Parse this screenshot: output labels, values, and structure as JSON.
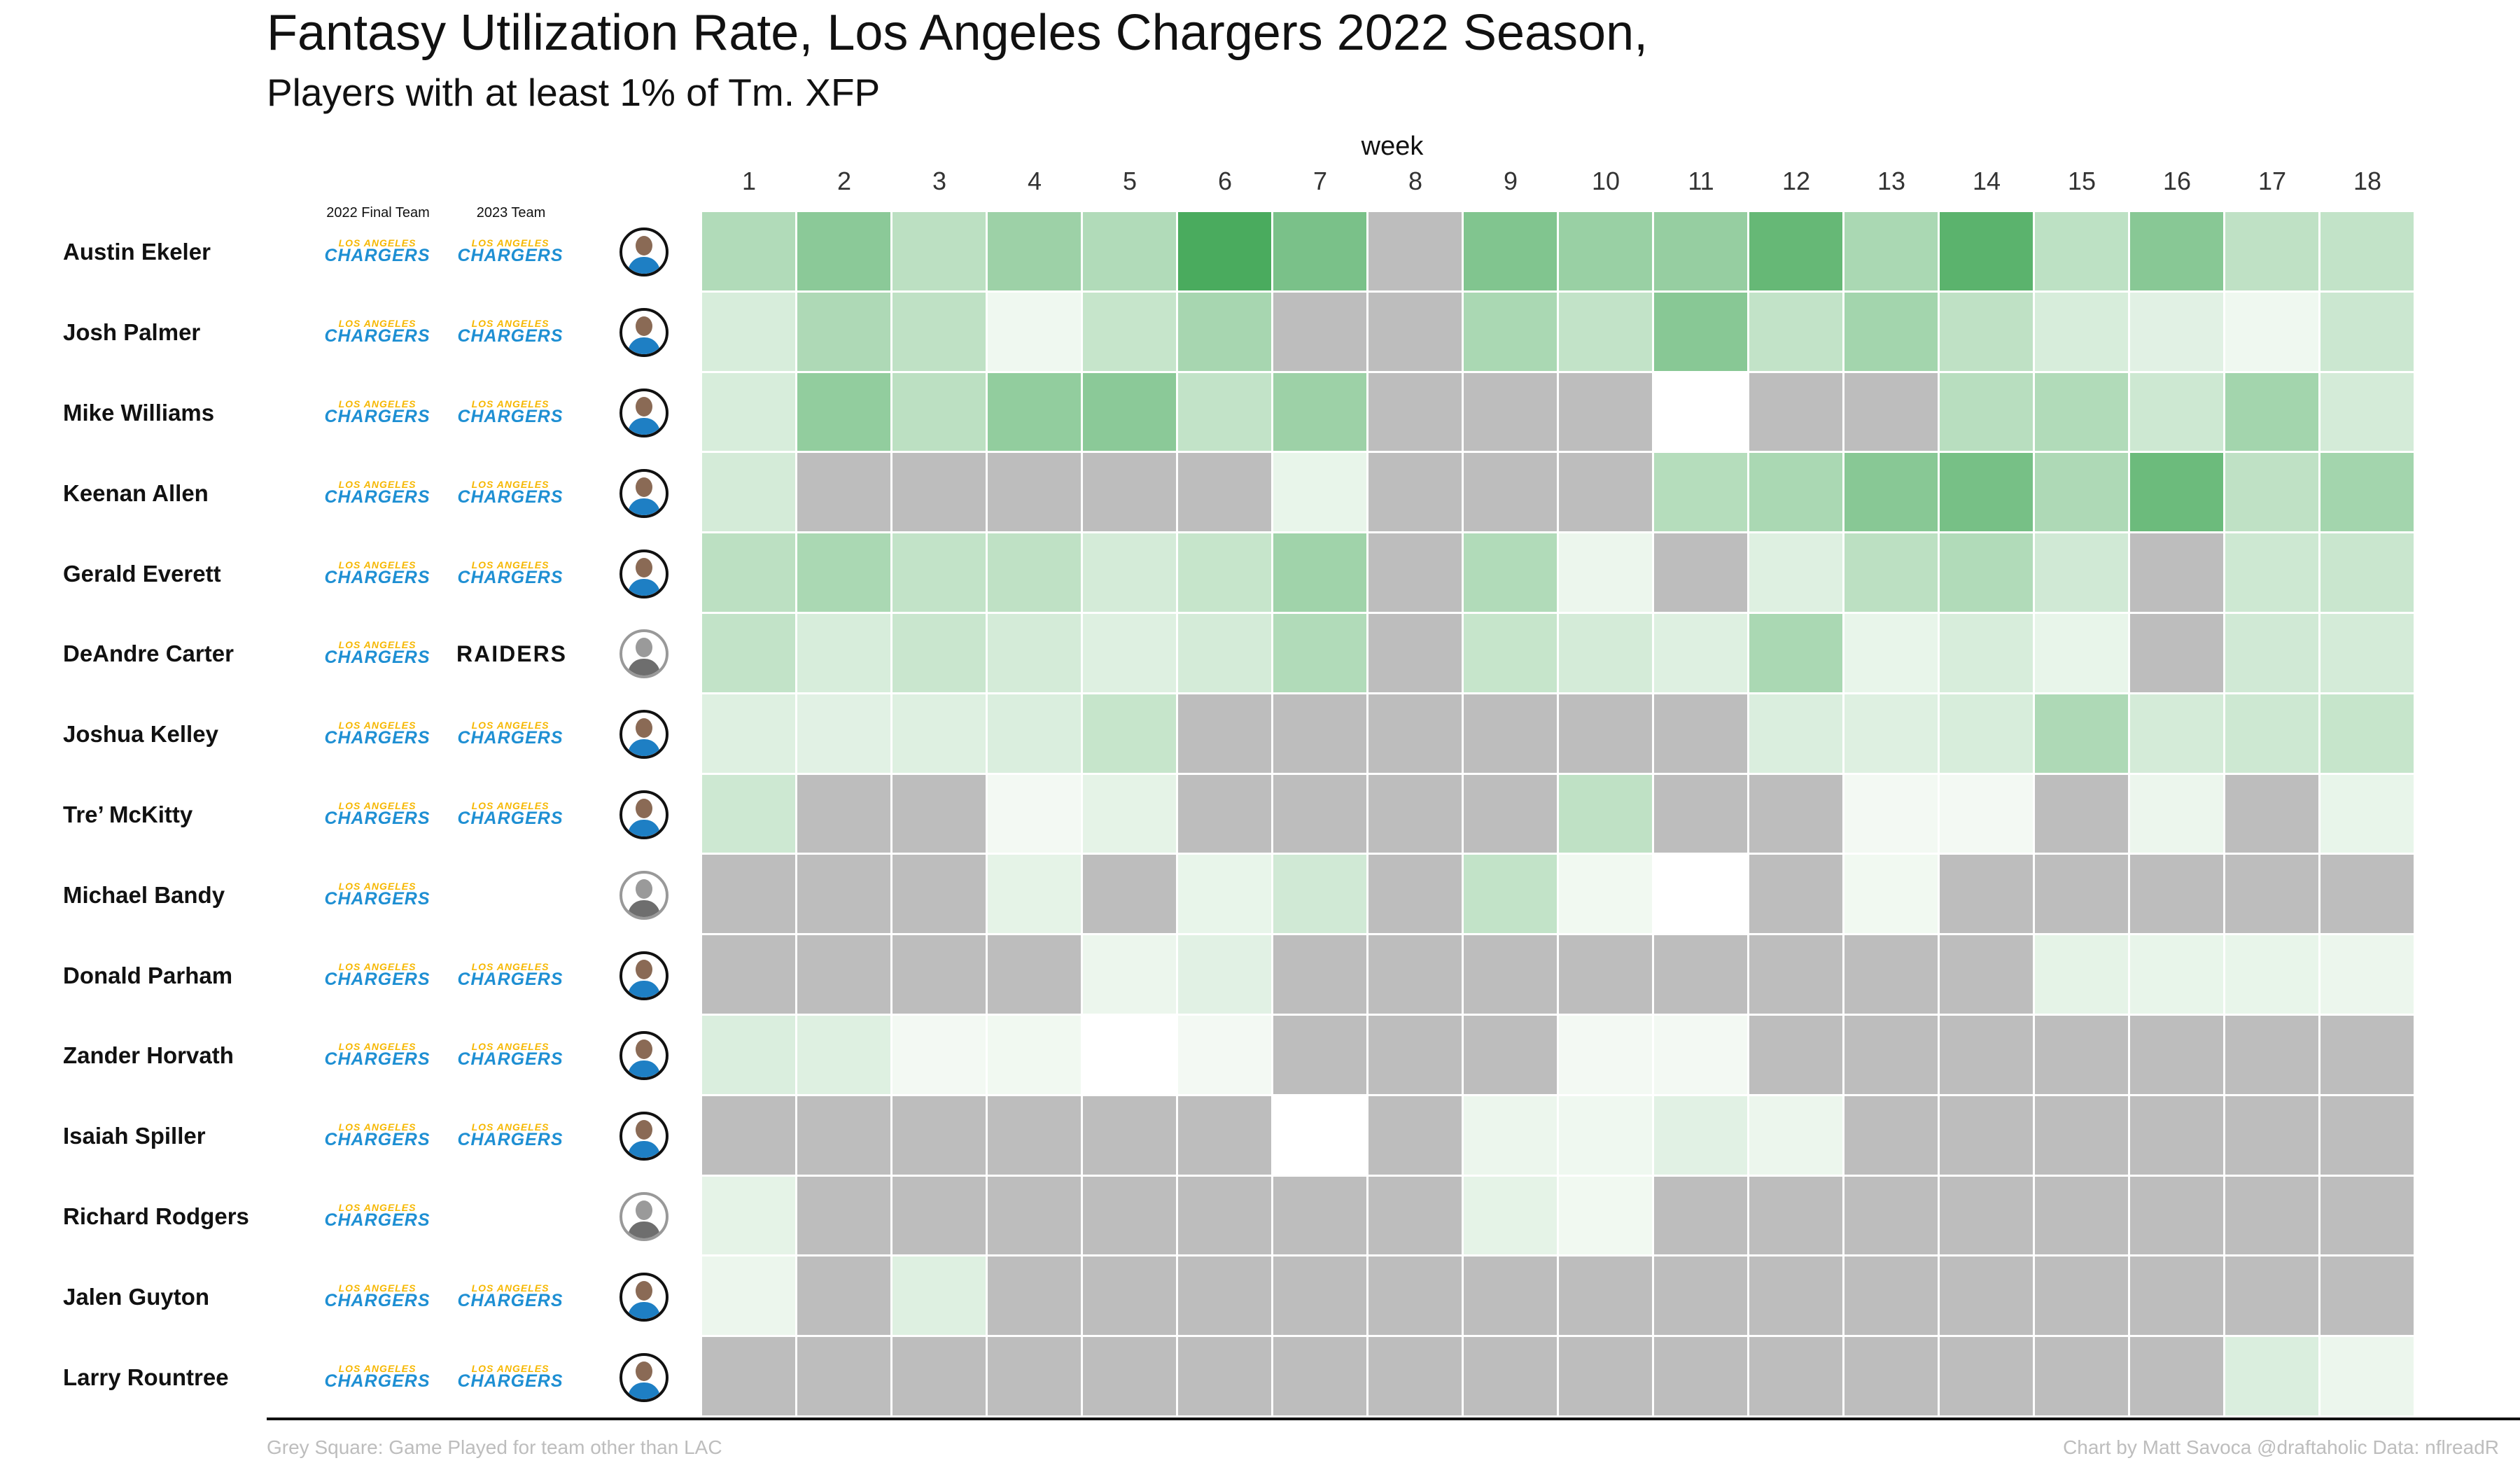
{
  "title": "Fantasy Utilization Rate, Los Angeles Chargers 2022 Season,",
  "subtitle": "Players with at least 1% of Tm. XFP",
  "xlabel": "week",
  "column_headers": {
    "team_2022": "2022 Final Team",
    "team_2023": "2023 Team"
  },
  "team_logos": {
    "chargers": {
      "line1": "LOS ANGELES",
      "line2": "CHARGERS"
    },
    "raiders": {
      "line2": "RAIDERS"
    }
  },
  "footnote_left": "Grey Square: Game Played for team other than LAC",
  "footnote_right": "Chart by Matt Savoca    @draftaholic    Data: nflreadR",
  "colors": {
    "grey": "#bdbdbd",
    "green_dark": "#4aab5e",
    "green_light": "#f6fbf6",
    "white": "#ffffff"
  },
  "chart_data": {
    "type": "heatmap",
    "x": [
      "1",
      "2",
      "3",
      "4",
      "5",
      "6",
      "7",
      "8",
      "9",
      "10",
      "11",
      "12",
      "13",
      "14",
      "15",
      "16",
      "17",
      "18"
    ],
    "scale": "0 = white, 1 = darkest green; null = grey square",
    "rows": [
      {
        "player": "Austin Ekeler",
        "team_2022": "chargers",
        "team_2023": "chargers",
        "headshot": "color",
        "values": [
          0.4,
          0.62,
          0.34,
          0.52,
          0.4,
          1.0,
          0.72,
          null,
          0.68,
          0.54,
          0.56,
          0.84,
          0.44,
          0.9,
          0.33,
          0.64,
          0.32,
          0.3
        ]
      },
      {
        "player": "Josh Palmer",
        "team_2022": "chargers",
        "team_2023": "chargers",
        "headshot": "color",
        "values": [
          0.18,
          0.42,
          0.32,
          0.04,
          0.28,
          0.46,
          null,
          null,
          0.44,
          0.3,
          0.64,
          0.3,
          0.48,
          0.32,
          0.18,
          0.12,
          0.04,
          0.25
        ]
      },
      {
        "player": "Mike Williams",
        "team_2022": "chargers",
        "team_2023": "chargers",
        "headshot": "color",
        "values": [
          0.18,
          0.58,
          0.34,
          0.58,
          0.62,
          0.3,
          0.52,
          null,
          null,
          null,
          0.0,
          null,
          null,
          0.36,
          0.4,
          0.24,
          0.48,
          0.2
        ]
      },
      {
        "player": "Keenan Allen",
        "team_2022": "chargers",
        "team_2023": "chargers",
        "headshot": "color",
        "values": [
          0.2,
          null,
          null,
          null,
          null,
          null,
          0.08,
          null,
          null,
          null,
          0.38,
          0.44,
          0.64,
          0.74,
          0.42,
          0.8,
          0.32,
          0.48
        ]
      },
      {
        "player": "Gerald Everett",
        "team_2022": "chargers",
        "team_2023": "chargers",
        "headshot": "color",
        "values": [
          0.34,
          0.44,
          0.3,
          0.32,
          0.2,
          0.28,
          0.5,
          null,
          0.4,
          0.06,
          null,
          0.14,
          0.34,
          0.4,
          0.22,
          null,
          0.24,
          0.26
        ]
      },
      {
        "player": "DeAndre Carter",
        "team_2022": "chargers",
        "team_2023": "raiders",
        "headshot": "grey",
        "values": [
          0.3,
          0.18,
          0.26,
          0.2,
          0.14,
          0.2,
          0.4,
          null,
          0.28,
          0.2,
          0.14,
          0.44,
          0.08,
          0.18,
          0.08,
          null,
          0.22,
          0.2
        ]
      },
      {
        "player": "Joshua Kelley",
        "team_2022": "chargers",
        "team_2023": "chargers",
        "headshot": "color",
        "values": [
          0.14,
          0.12,
          0.14,
          0.16,
          0.28,
          null,
          null,
          null,
          null,
          null,
          null,
          0.16,
          0.14,
          0.18,
          0.42,
          0.2,
          0.24,
          0.28
        ]
      },
      {
        "player": "Tre’ McKitty",
        "team_2022": "chargers",
        "team_2023": "chargers",
        "headshot": "color",
        "values": [
          0.24,
          null,
          null,
          0.02,
          0.1,
          null,
          null,
          null,
          null,
          0.32,
          null,
          null,
          0.02,
          0.02,
          null,
          0.06,
          null,
          0.08
        ]
      },
      {
        "player": "Michael Bandy",
        "team_2022": "chargers",
        "team_2023": "",
        "headshot": "grey",
        "values": [
          null,
          null,
          null,
          0.1,
          null,
          0.08,
          0.22,
          null,
          0.3,
          0.03,
          0.0,
          null,
          0.03,
          null,
          null,
          null,
          null,
          null
        ]
      },
      {
        "player": "Donald Parham",
        "team_2022": "chargers",
        "team_2023": "chargers",
        "headshot": "color",
        "values": [
          null,
          null,
          null,
          null,
          0.06,
          0.12,
          null,
          null,
          null,
          null,
          null,
          null,
          null,
          null,
          0.1,
          0.08,
          0.08,
          0.06
        ]
      },
      {
        "player": "Zander Horvath",
        "team_2022": "chargers",
        "team_2023": "chargers",
        "headshot": "color",
        "values": [
          0.16,
          0.14,
          0.02,
          0.03,
          0.0,
          0.02,
          null,
          null,
          null,
          0.02,
          0.02,
          null,
          null,
          null,
          null,
          null,
          null,
          null
        ]
      },
      {
        "player": "Isaiah Spiller",
        "team_2022": "chargers",
        "team_2023": "chargers",
        "headshot": "color",
        "values": [
          null,
          null,
          null,
          null,
          null,
          null,
          0.0,
          null,
          0.06,
          0.04,
          0.12,
          0.06,
          null,
          null,
          null,
          null,
          null,
          null
        ]
      },
      {
        "player": "Richard Rodgers",
        "team_2022": "chargers",
        "team_2023": "",
        "headshot": "grey",
        "values": [
          0.1,
          null,
          null,
          null,
          null,
          null,
          null,
          null,
          0.1,
          0.03,
          null,
          null,
          null,
          null,
          null,
          null,
          null,
          null
        ]
      },
      {
        "player": "Jalen Guyton",
        "team_2022": "chargers",
        "team_2023": "chargers",
        "headshot": "color",
        "values": [
          0.06,
          null,
          0.14,
          null,
          null,
          null,
          null,
          null,
          null,
          null,
          null,
          null,
          null,
          null,
          null,
          null,
          null,
          null
        ]
      },
      {
        "player": "Larry Rountree",
        "team_2022": "chargers",
        "team_2023": "chargers",
        "headshot": "color",
        "values": [
          null,
          null,
          null,
          null,
          null,
          null,
          null,
          null,
          null,
          null,
          null,
          null,
          null,
          null,
          null,
          null,
          0.16,
          0.06
        ]
      }
    ]
  }
}
